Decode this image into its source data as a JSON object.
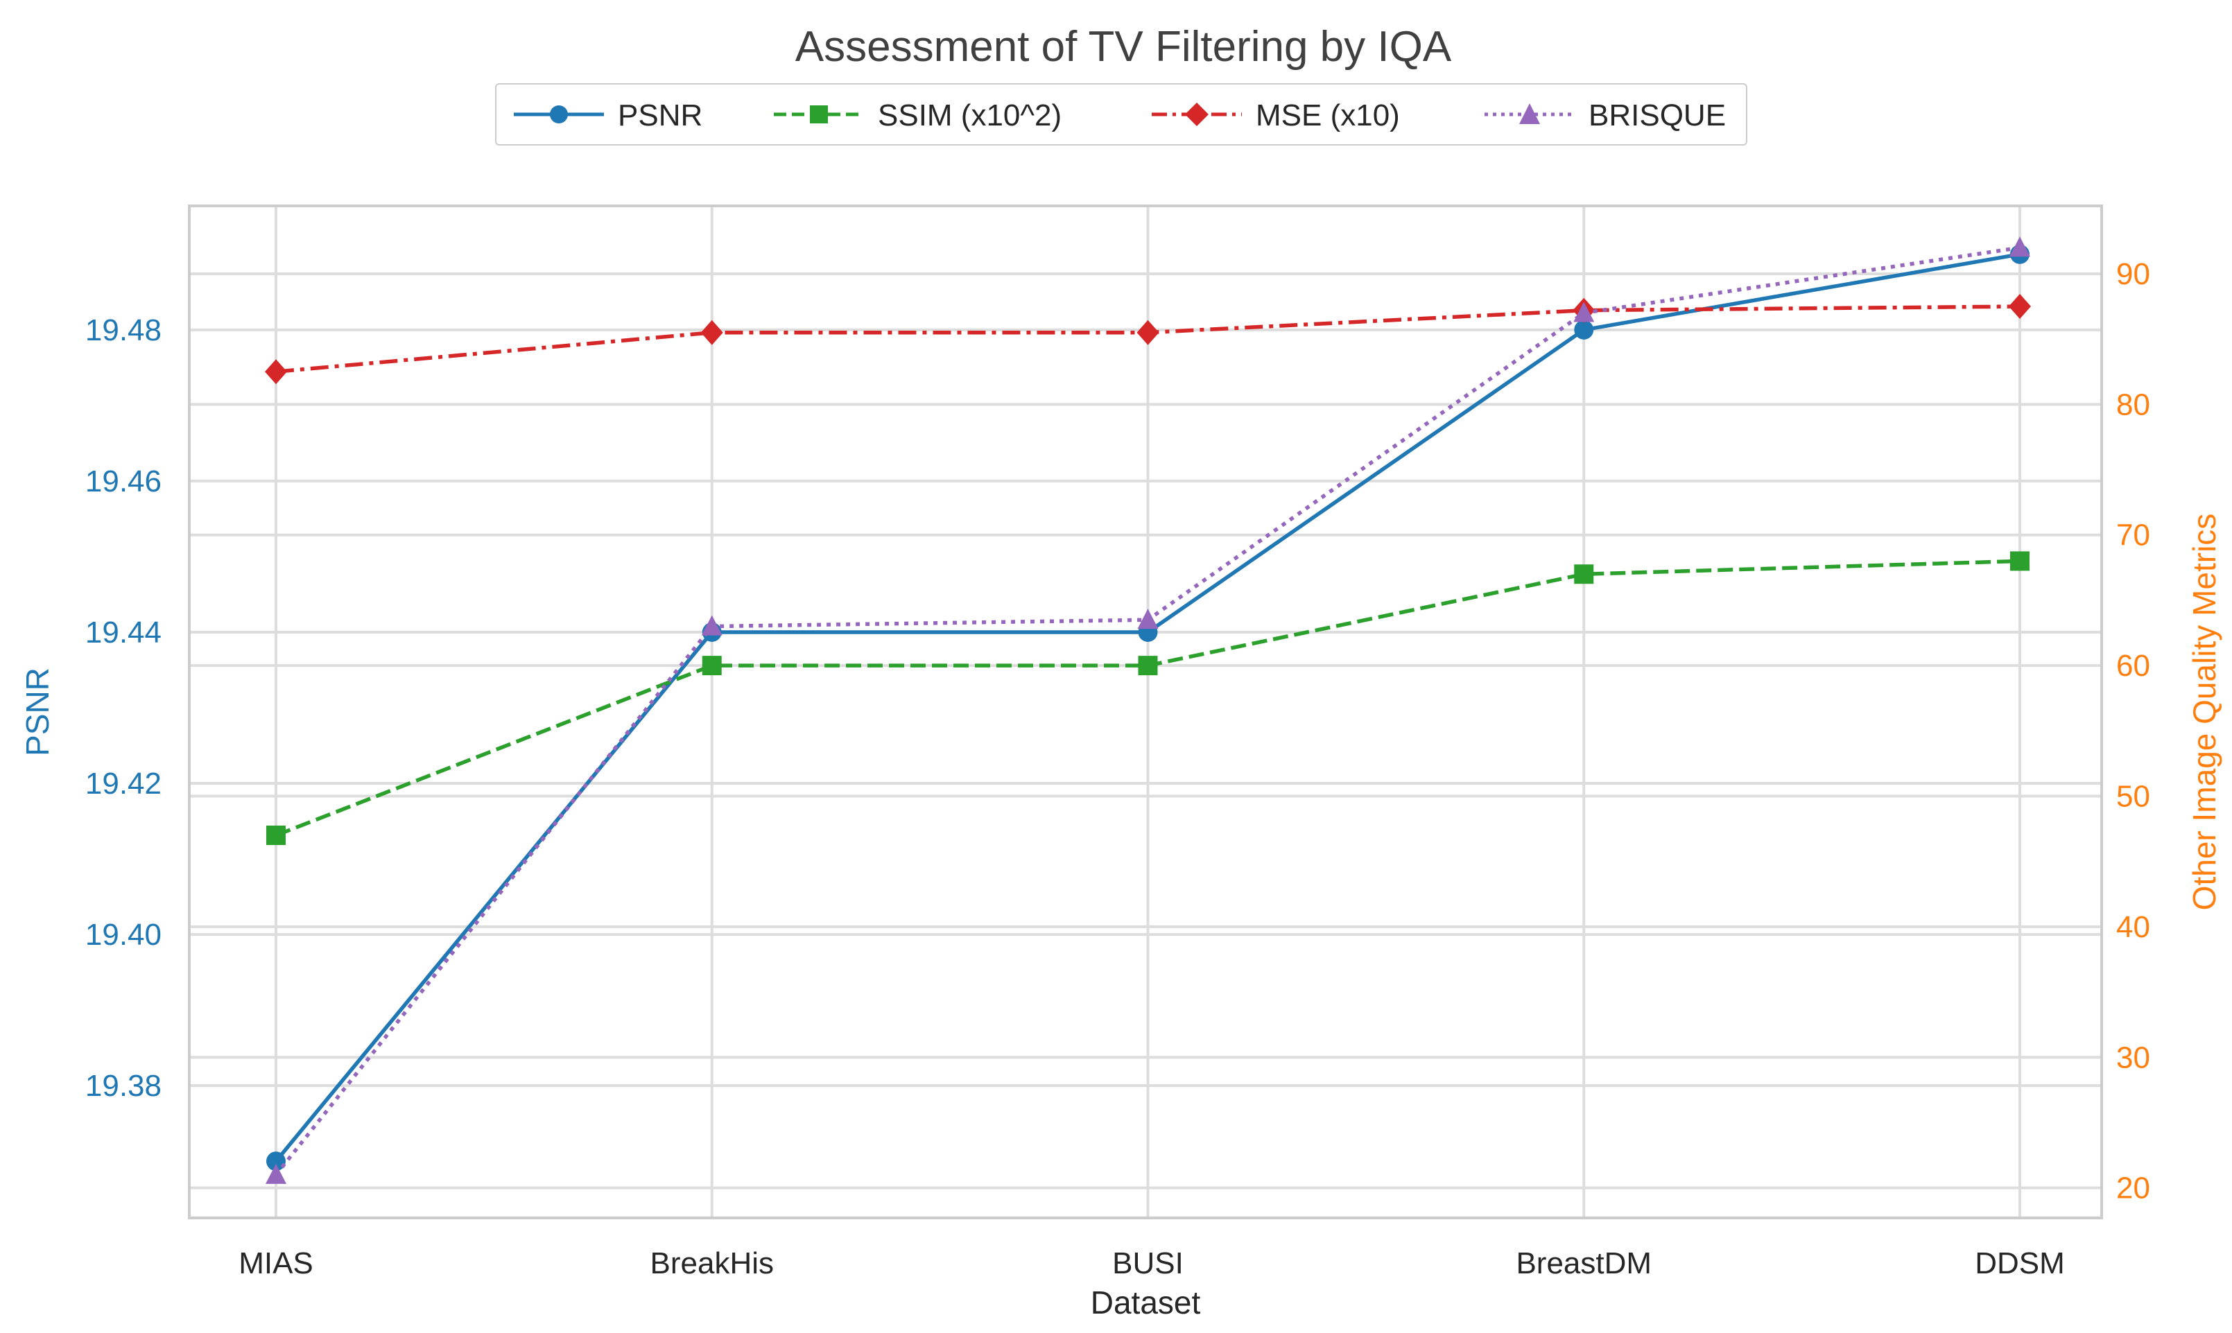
{
  "chart_data": {
    "type": "line",
    "title": "Assessment of TV Filtering by IQA",
    "xlabel": "Dataset",
    "ylabel": "PSNR",
    "ylabel_right": "Other Image Quality Metrics",
    "categories": [
      "MIAS",
      "BreakHis",
      "BUSI",
      "BreastDM",
      "DDSM"
    ],
    "ylim": [
      19.3625,
      19.4964
    ],
    "y_ticks": [
      19.38,
      19.4,
      19.42,
      19.44,
      19.46,
      19.48
    ],
    "y_tick_labels": [
      "19.38",
      "19.40",
      "19.42",
      "19.44",
      "19.46",
      "19.48"
    ],
    "ylim_right": [
      17.7,
      95.2
    ],
    "y_right_ticks": [
      20,
      30,
      40,
      50,
      60,
      70,
      80,
      90
    ],
    "y_right_tick_labels": [
      "20",
      "30",
      "40",
      "50",
      "60",
      "70",
      "80",
      "90"
    ],
    "grid": true,
    "legend_position": "top-center",
    "series": [
      {
        "name": "PSNR",
        "axis": "left",
        "color": "#1f77b4",
        "marker": "circle",
        "linestyle": "solid",
        "values": [
          19.37,
          19.44,
          19.44,
          19.48,
          19.49
        ]
      },
      {
        "name": "SSIM (x10^2)",
        "axis": "right",
        "color": "#2ca02c",
        "marker": "square",
        "linestyle": "dashed",
        "values": [
          47.0,
          60.0,
          60.0,
          67.0,
          68.0
        ]
      },
      {
        "name": "MSE (x10)",
        "axis": "right",
        "color": "#d62728",
        "marker": "diamond",
        "linestyle": "dashdot",
        "values": [
          82.5,
          85.5,
          85.5,
          87.2,
          87.5
        ]
      },
      {
        "name": "BRISQUE",
        "axis": "right",
        "color": "#9467bd",
        "marker": "triangle",
        "linestyle": "dotted",
        "values": [
          21.0,
          63.0,
          63.5,
          87.0,
          92.0
        ]
      }
    ],
    "colors": {
      "left_axis": "#1f77b4",
      "right_axis": "#ff7f0e",
      "text": "#262626",
      "title": "#404040",
      "grid": "#dddddd",
      "frame": "#cccccc"
    }
  }
}
